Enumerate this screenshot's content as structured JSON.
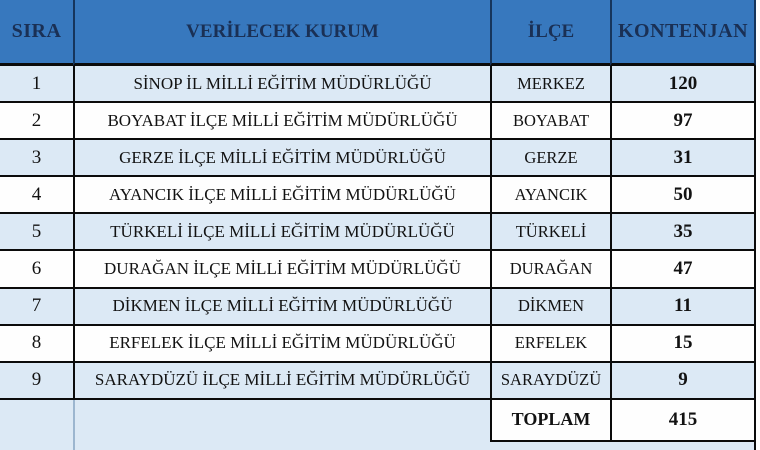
{
  "colors": {
    "header_bg": "#3778BE",
    "header_text": "#1A3055",
    "header_divider": "#16355C",
    "row_alt_bg": "#DCE9F5",
    "row_bg": "#FEFEFE",
    "border_dark": "#0B0B0B",
    "divider_steel": "#9CB6CF",
    "text": "#121212"
  },
  "table": {
    "columns": [
      {
        "key": "sira",
        "label": "SIRA"
      },
      {
        "key": "kurum",
        "label": "VERİLECEK KURUM"
      },
      {
        "key": "ilce",
        "label": "İLÇE"
      },
      {
        "key": "kontenjan",
        "label": "KONTENJAN"
      }
    ],
    "rows": [
      {
        "sira": "1",
        "kurum": "SİNOP İL MİLLİ EĞİTİM MÜDÜRLÜĞÜ",
        "ilce": "MERKEZ",
        "kontenjan": "120"
      },
      {
        "sira": "2",
        "kurum": "BOYABAT İLÇE MİLLİ EĞİTİM MÜDÜRLÜĞÜ",
        "ilce": "BOYABAT",
        "kontenjan": "97"
      },
      {
        "sira": "3",
        "kurum": "GERZE İLÇE MİLLİ EĞİTİM MÜDÜRLÜĞÜ",
        "ilce": "GERZE",
        "kontenjan": "31"
      },
      {
        "sira": "4",
        "kurum": "AYANCIK İLÇE MİLLİ EĞİTİM MÜDÜRLÜĞÜ",
        "ilce": "AYANCIK",
        "kontenjan": "50"
      },
      {
        "sira": "5",
        "kurum": "TÜRKELİ İLÇE MİLLİ EĞİTİM MÜDÜRLÜĞÜ",
        "ilce": "TÜRKELİ",
        "kontenjan": "35"
      },
      {
        "sira": "6",
        "kurum": "DURAĞAN İLÇE MİLLİ EĞİTİM MÜDÜRLÜĞÜ",
        "ilce": "DURAĞAN",
        "kontenjan": "47"
      },
      {
        "sira": "7",
        "kurum": "DİKMEN İLÇE MİLLİ EĞİTİM MÜDÜRLÜĞÜ",
        "ilce": "DİKMEN",
        "kontenjan": "11"
      },
      {
        "sira": "8",
        "kurum": "ERFELEK İLÇE MİLLİ EĞİTİM MÜDÜRLÜĞÜ",
        "ilce": "ERFELEK",
        "kontenjan": "15"
      },
      {
        "sira": "9",
        "kurum": "SARAYDÜZÜ İLÇE MİLLİ EĞİTİM MÜDÜRLÜĞÜ",
        "ilce": "SARAYDÜZÜ",
        "kontenjan": "9"
      }
    ],
    "total": {
      "label": "TOPLAM",
      "value": "415"
    }
  },
  "chart_data": {
    "type": "table",
    "columns": [
      "SIRA",
      "VERİLECEK KURUM",
      "İLÇE",
      "KONTENJAN"
    ],
    "rows": [
      [
        "1",
        "SİNOP İL MİLLİ EĞİTİM MÜDÜRLÜĞÜ",
        "MERKEZ",
        120
      ],
      [
        "2",
        "BOYABAT İLÇE MİLLİ EĞİTİM MÜDÜRLÜĞÜ",
        "BOYABAT",
        97
      ],
      [
        "3",
        "GERZE İLÇE MİLLİ EĞİTİM MÜDÜRLÜĞÜ",
        "GERZE",
        31
      ],
      [
        "4",
        "AYANCIK İLÇE MİLLİ EĞİTİM MÜDÜRLÜĞÜ",
        "AYANCIK",
        50
      ],
      [
        "5",
        "TÜRKELİ İLÇE MİLLİ EĞİTİM MÜDÜRLÜĞÜ",
        "TÜRKELİ",
        35
      ],
      [
        "6",
        "DURAĞAN İLÇE MİLLİ EĞİTİM MÜDÜRLÜĞÜ",
        "DURAĞAN",
        47
      ],
      [
        "7",
        "DİKMEN İLÇE MİLLİ EĞİTİM MÜDÜRLÜĞÜ",
        "DİKMEN",
        11
      ],
      [
        "8",
        "ERFELEK İLÇE MİLLİ EĞİTİM MÜDÜRLÜĞÜ",
        "ERFELEK",
        15
      ],
      [
        "9",
        "SARAYDÜZÜ İLÇE MİLLİ EĞİTİM MÜDÜRLÜĞÜ",
        "SARAYDÜZÜ",
        9
      ]
    ],
    "total_row": [
      "",
      "",
      "TOPLAM",
      415
    ]
  }
}
